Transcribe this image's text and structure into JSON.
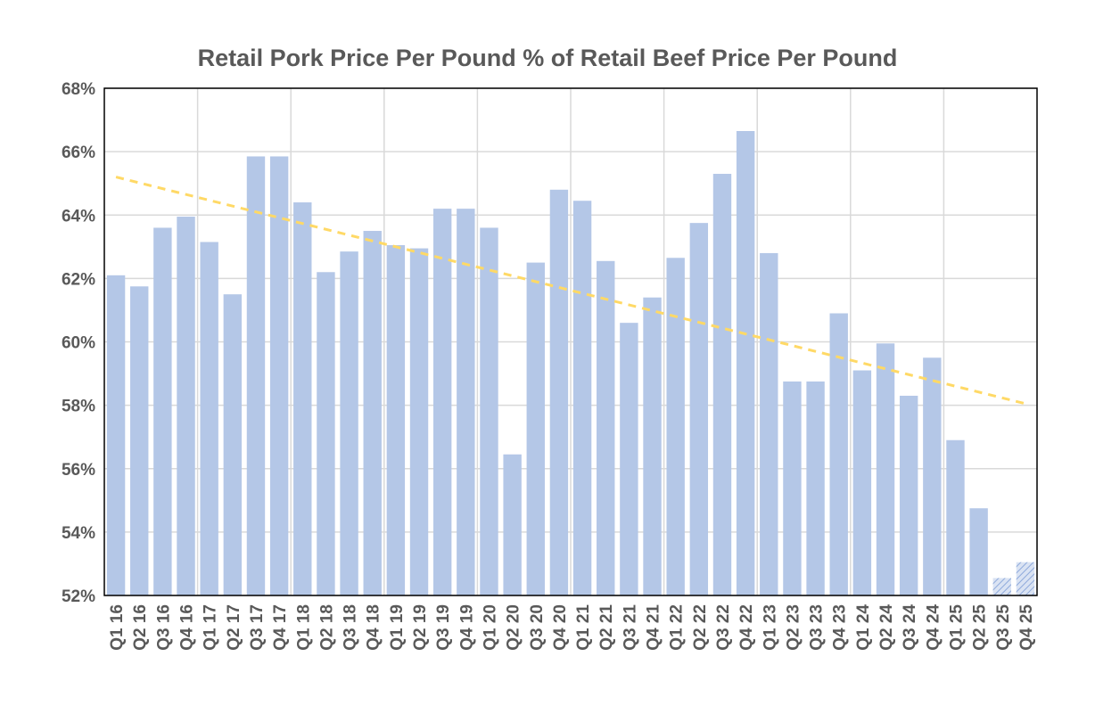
{
  "chart_data": {
    "type": "bar",
    "title": "Retail Pork Price Per Pound % of Retail Beef Price Per Pound",
    "xlabel": "",
    "ylabel": "",
    "ylim": [
      52,
      68
    ],
    "yticks": [
      52,
      54,
      56,
      58,
      60,
      62,
      64,
      66,
      68
    ],
    "ytick_labels": [
      "52%",
      "54%",
      "56%",
      "58%",
      "60%",
      "62%",
      "64%",
      "66%",
      "68%"
    ],
    "grid": true,
    "legend": "none",
    "categories": [
      "Q1 16",
      "Q2 16",
      "Q3 16",
      "Q4 16",
      "Q1 17",
      "Q2 17",
      "Q3 17",
      "Q4 17",
      "Q1 18",
      "Q2 18",
      "Q3 18",
      "Q4 18",
      "Q1 19",
      "Q2 19",
      "Q3 19",
      "Q4 19",
      "Q1 20",
      "Q2 20",
      "Q3 20",
      "Q4 20",
      "Q1 21",
      "Q2 21",
      "Q3 21",
      "Q4 21",
      "Q1 22",
      "Q2 22",
      "Q3 22",
      "Q4 22",
      "Q1 23",
      "Q2 23",
      "Q3 23",
      "Q4 23",
      "Q1 24",
      "Q2 24",
      "Q3 24",
      "Q4 24",
      "Q1 25",
      "Q2 25",
      "Q3 25",
      "Q4 25"
    ],
    "values": [
      62.1,
      61.75,
      63.6,
      63.95,
      63.15,
      61.5,
      65.85,
      65.85,
      64.4,
      62.2,
      62.85,
      63.5,
      63.05,
      62.95,
      64.2,
      64.2,
      63.6,
      56.45,
      62.5,
      64.8,
      64.45,
      62.55,
      60.6,
      61.4,
      62.65,
      63.75,
      65.3,
      66.65,
      62.8,
      58.75,
      58.75,
      60.9,
      59.1,
      59.95,
      58.3,
      59.5,
      56.9,
      54.75,
      52.55,
      53.05
    ],
    "forecast_categories": [
      "Q3 25",
      "Q4 25"
    ],
    "trendline": {
      "style": "dashed",
      "start": 65.2,
      "end": 58.05
    },
    "colors": {
      "bar": "#b4c7e7",
      "trend": "#ffd966",
      "grid": "#d9d9d9",
      "axis": "#000000",
      "text": "#595959"
    }
  }
}
